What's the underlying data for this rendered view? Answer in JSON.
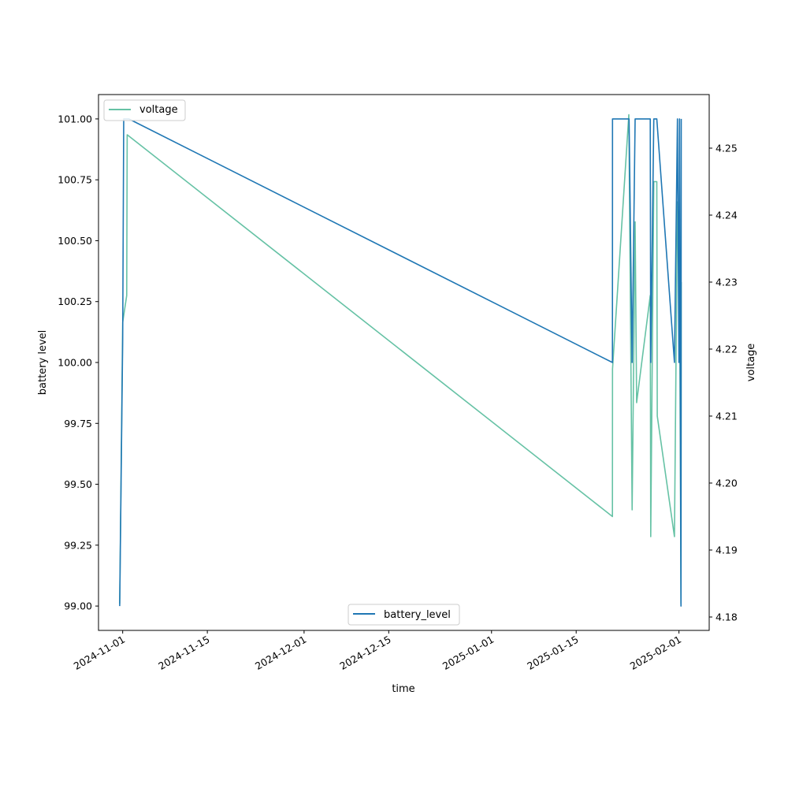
{
  "chart_data": {
    "type": "line",
    "xlabel": "time",
    "ylabel_left": "battery level",
    "ylabel_right": "voltage",
    "x_ticks": [
      "2024-11-01",
      "2024-11-15",
      "2024-12-01",
      "2024-12-15",
      "2025-01-01",
      "2025-01-15",
      "2025-02-01"
    ],
    "xlim": [
      "2024-10-28",
      "2025-02-06"
    ],
    "ylim_left": [
      98.9,
      101.1
    ],
    "ylim_right": [
      4.178,
      4.258
    ],
    "y_ticks_left": [
      "99.00",
      "99.25",
      "99.50",
      "99.75",
      "100.00",
      "100.25",
      "100.50",
      "100.75",
      "101.00"
    ],
    "y_ticks_right": [
      "4.18",
      "4.19",
      "4.20",
      "4.21",
      "4.22",
      "4.23",
      "4.24",
      "4.25"
    ],
    "legend_left_placement": "bottom-center",
    "legend_right_placement": "top-left",
    "series": [
      {
        "name": "battery_level",
        "axis": "left",
        "color": "#1f77b4",
        "points": [
          [
            "2024-10-31T12:00",
            99.0
          ],
          [
            "2024-11-01T00:00",
            100.1
          ],
          [
            "2024-11-01T04:00",
            101.0
          ],
          [
            "2024-11-02T00:00",
            101.0
          ],
          [
            "2025-01-21T00:00",
            100.0
          ],
          [
            "2025-01-21T00:10",
            101.0
          ],
          [
            "2025-01-23T18:00",
            101.0
          ],
          [
            "2025-01-24T06:00",
            100.0
          ],
          [
            "2025-01-24T18:00",
            101.0
          ],
          [
            "2025-01-27T06:00",
            101.0
          ],
          [
            "2025-01-27T08:00",
            100.0
          ],
          [
            "2025-01-27T20:00",
            101.0
          ],
          [
            "2025-01-28T08:00",
            101.0
          ],
          [
            "2025-01-31T06:00",
            100.0
          ],
          [
            "2025-01-31T18:00",
            101.0
          ],
          [
            "2025-02-01T00:00",
            100.0
          ],
          [
            "2025-02-01T02:00",
            101.0
          ],
          [
            "2025-02-01T08:00",
            99.0
          ],
          [
            "2025-02-01T09:00",
            101.0
          ]
        ]
      },
      {
        "name": "voltage",
        "axis": "right",
        "color": "#66c2a5",
        "points": [
          [
            "2024-10-31T12:00",
            4.182
          ],
          [
            "2024-11-01T00:00",
            4.224
          ],
          [
            "2024-11-01T16:00",
            4.228
          ],
          [
            "2024-11-01T18:00",
            4.252
          ],
          [
            "2025-01-21T00:00",
            4.195
          ],
          [
            "2025-01-21T00:10",
            4.217
          ],
          [
            "2025-01-23T17:00",
            4.255
          ],
          [
            "2025-01-24T06:00",
            4.196
          ],
          [
            "2025-01-24T18:00",
            4.239
          ],
          [
            "2025-01-25T00:00",
            4.212
          ],
          [
            "2025-01-27T06:00",
            4.228
          ],
          [
            "2025-01-27T08:00",
            4.192
          ],
          [
            "2025-01-27T20:00",
            4.245
          ],
          [
            "2025-01-28T08:00",
            4.245
          ],
          [
            "2025-01-28T10:00",
            4.21
          ],
          [
            "2025-01-31T06:00",
            4.192
          ],
          [
            "2025-01-31T18:00",
            4.242
          ],
          [
            "2025-02-01T02:00",
            4.232
          ],
          [
            "2025-02-01T08:00",
            4.182
          ],
          [
            "2025-02-01T09:00",
            4.23
          ]
        ]
      }
    ]
  }
}
